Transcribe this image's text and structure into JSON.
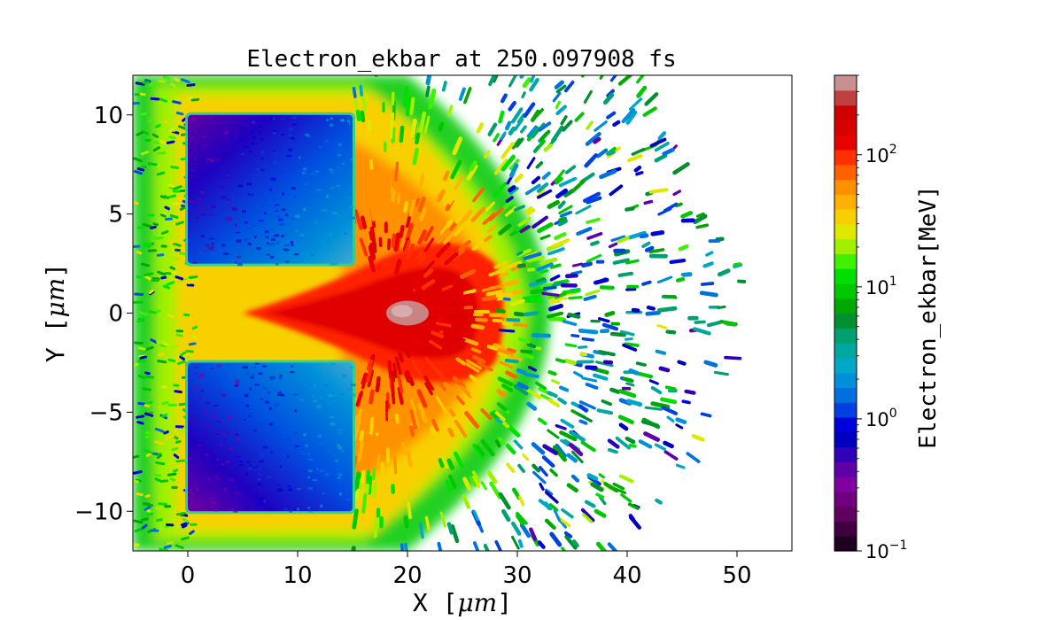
{
  "chart_data": {
    "type": "heatmap",
    "title": "Electron_ekbar at 250.097908 fs",
    "xlabel": "X  [$\\mu m$]",
    "xlabel_parts": {
      "name": "X",
      "unit": "μm"
    },
    "ylabel": "Y  [$\\mu m$]",
    "ylabel_parts": {
      "name": "Y",
      "unit": "μm"
    },
    "xlim": [
      -5,
      55
    ],
    "ylim": [
      -12,
      12
    ],
    "xticks": [
      0,
      10,
      20,
      30,
      40,
      50
    ],
    "xtick_labels": [
      "0",
      "10",
      "20",
      "30",
      "40",
      "50"
    ],
    "yticks": [
      -10,
      -5,
      0,
      5,
      10
    ],
    "ytick_labels": [
      "−10",
      "−5",
      "0",
      "5",
      "10"
    ],
    "colorbar": {
      "label": "Electron_ekbar[MeV]",
      "scale": "log",
      "range": [
        0.1,
        400
      ],
      "ticks": [
        0.1,
        1,
        10,
        100
      ],
      "tick_labels": [
        {
          "base": "10",
          "exp": "−1"
        },
        {
          "base": "10",
          "exp": "0"
        },
        {
          "base": "10",
          "exp": "1"
        },
        {
          "base": "10",
          "exp": "2"
        }
      ],
      "colors": [
        "#200020",
        "#400040",
        "#600060",
        "#700080",
        "#8000a0",
        "#6000a8",
        "#3000b8",
        "#0000c0",
        "#0000dd",
        "#0040e0",
        "#0070e0",
        "#0090d8",
        "#00a8c8",
        "#00a8a0",
        "#00a070",
        "#009030",
        "#00a800",
        "#00c800",
        "#00e000",
        "#40f000",
        "#a0f000",
        "#e0e800",
        "#f8d000",
        "#ffb000",
        "#ff9000",
        "#ff6000",
        "#ff3000",
        "#e80000",
        "#d80000",
        "#d00000",
        "#c04040",
        "#c89090"
      ]
    },
    "regions": [
      {
        "name": "upper target block",
        "x": [
          0,
          15
        ],
        "y": [
          2.5,
          10
        ],
        "ekbar_range_MeV": [
          0.2,
          1.2
        ]
      },
      {
        "name": "lower target block",
        "x": [
          0,
          15
        ],
        "y": [
          -10,
          -2.5
        ],
        "ekbar_range_MeV": [
          0.2,
          1.2
        ]
      },
      {
        "name": "channel jet core",
        "x": [
          5,
          30
        ],
        "y": [
          -4,
          4
        ],
        "ekbar_range_MeV": [
          60,
          400
        ]
      },
      {
        "name": "hot spot",
        "x": [
          18,
          22
        ],
        "y": [
          -0.8,
          0.8
        ],
        "ekbar_range_MeV": [
          250,
          400
        ]
      }
    ]
  }
}
